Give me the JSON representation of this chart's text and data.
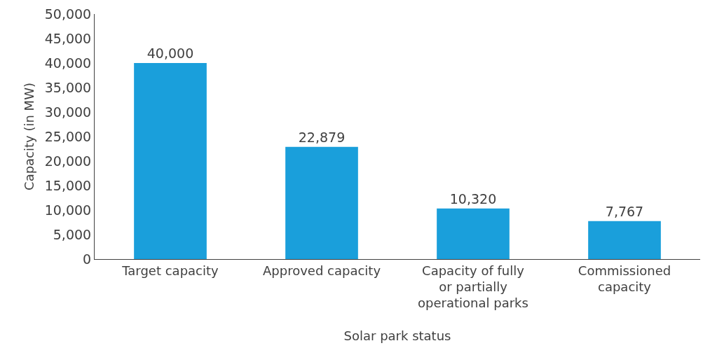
{
  "chart_data": {
    "type": "bar",
    "xlabel": "Solar park status",
    "ylabel": "Capacity (in MW)",
    "categories": [
      "Target capacity",
      "Approved capacity",
      "Capacity of fully or partially operational parks",
      "Commissioned capacity"
    ],
    "values": [
      40000,
      22879,
      10320,
      7767
    ],
    "value_labels": [
      "40,000",
      "22,879",
      "10,320",
      "7,767"
    ],
    "color": "#1a9fdb",
    "grid": false,
    "ylim": [
      0,
      50000
    ],
    "yticks": [
      {
        "value": 0,
        "label": "0"
      },
      {
        "value": 5000,
        "label": "5,000"
      },
      {
        "value": 10000,
        "label": "10,000"
      },
      {
        "value": 15000,
        "label": "15,000"
      },
      {
        "value": 20000,
        "label": "20,000"
      },
      {
        "value": 25000,
        "label": "25,000"
      },
      {
        "value": 30000,
        "label": "30,000"
      },
      {
        "value": 35000,
        "label": "35,000"
      },
      {
        "value": 40000,
        "label": "40,000"
      },
      {
        "value": 45000,
        "label": "45,000"
      },
      {
        "value": 50000,
        "label": "50,000"
      }
    ]
  }
}
